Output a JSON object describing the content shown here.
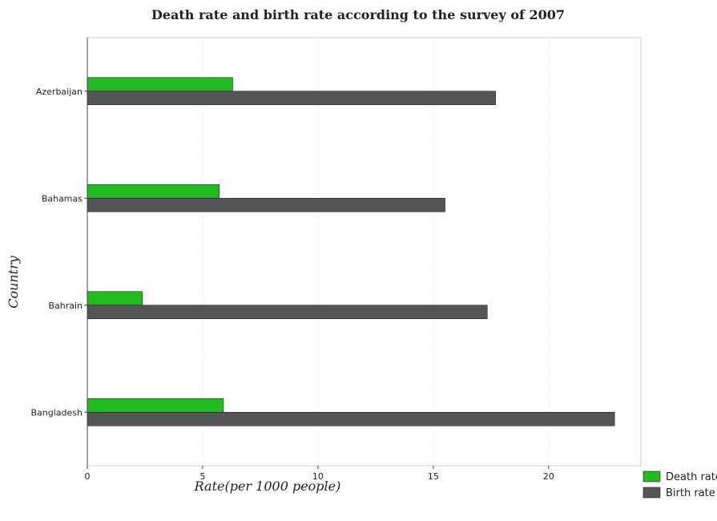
{
  "chart_data": {
    "type": "bar",
    "orientation": "horizontal",
    "title": "Death rate and birth rate according to the survey of 2007",
    "xlabel": "Rate(per 1000 people)",
    "ylabel": "Country",
    "categories": [
      "Azerbaijan",
      "Bahamas",
      "Bahrain",
      "Bangladesh"
    ],
    "series": [
      {
        "name": "Death rate",
        "color": "#22bb22",
        "values": [
          6.3,
          5.72,
          2.39,
          5.9
        ]
      },
      {
        "name": "Birth rate",
        "color": "#555555",
        "values": [
          17.7,
          15.51,
          17.34,
          22.86
        ]
      }
    ],
    "xlim": [
      0,
      24
    ],
    "xticks": [
      0,
      5,
      10,
      15,
      20
    ],
    "grid": "vertical dotted",
    "legend": "bottom-right"
  }
}
